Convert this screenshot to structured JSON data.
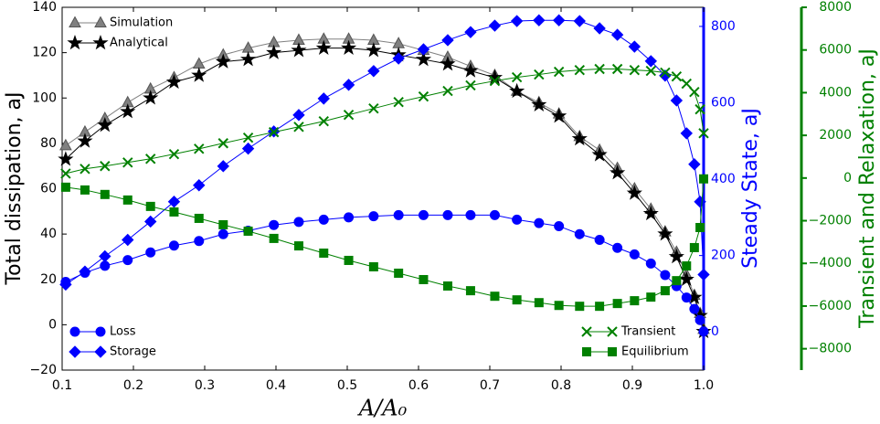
{
  "chart_data": {
    "type": "line",
    "xlabel": "A/A₀",
    "ylabel": "Total dissipation, aJ",
    "y2label": "Steady State, aJ",
    "y3label": "Transient and Relaxation, aJ",
    "y2color": "#0000ff",
    "y3color": "#008000",
    "x": [
      0.105,
      0.132,
      0.16,
      0.192,
      0.224,
      0.257,
      0.292,
      0.326,
      0.361,
      0.397,
      0.432,
      0.467,
      0.502,
      0.537,
      0.572,
      0.607,
      0.641,
      0.673,
      0.707,
      0.738,
      0.769,
      0.797,
      0.826,
      0.854,
      0.879,
      0.903,
      0.926,
      0.946,
      0.962,
      0.976,
      0.987,
      0.995,
      1.0
    ],
    "xlim": [
      0.1,
      1.0
    ],
    "xticks": [
      0.1,
      0.2,
      0.3,
      0.4,
      0.5,
      0.6,
      0.7,
      0.8,
      0.9,
      {
        "value": 1.0,
        "label": "1.0"
      }
    ],
    "ylim": [
      -20,
      140
    ],
    "yticks": [
      {
        "value": -20,
        "label": "−20"
      },
      0,
      20,
      40,
      60,
      80,
      100,
      120,
      140
    ],
    "y2lim": [
      -100,
      850
    ],
    "y2ticks": [
      0,
      200,
      400,
      600,
      800
    ],
    "y3lim": [
      -9000,
      8000
    ],
    "y3ticks": [
      {
        "value": -8000,
        "label": "−8000"
      },
      {
        "value": -6000,
        "label": "−6000"
      },
      {
        "value": -4000,
        "label": "−4000"
      },
      {
        "value": -2000,
        "label": "−2000"
      },
      0,
      2000,
      4000,
      6000,
      8000
    ],
    "series": [
      {
        "name": "Simulation",
        "color": "#808080",
        "marker": "^",
        "legend": "upper left",
        "values": [
          79,
          85,
          91,
          98,
          104,
          109,
          115,
          119,
          122,
          124.5,
          125.5,
          126,
          126,
          125.5,
          124,
          121,
          118,
          114,
          110,
          103,
          98,
          93,
          83,
          77,
          69,
          60,
          51,
          41,
          32,
          22,
          13,
          5,
          -2
        ]
      },
      {
        "name": "Analytical",
        "color": "#000000",
        "marker": "*",
        "legend": "upper left",
        "values": [
          73,
          81,
          88,
          94,
          100,
          107,
          110,
          116,
          117,
          120,
          121,
          122,
          122,
          121,
          119,
          117,
          115,
          112,
          109,
          103,
          97,
          92,
          82,
          75,
          67,
          58,
          49,
          40,
          30,
          20,
          12,
          4,
          -3
        ]
      },
      {
        "name": "Loss",
        "color": "#0000ff",
        "marker": "o",
        "axis": "y2",
        "legend": "lower left",
        "values": [
          131,
          155,
          173,
          188,
          208,
          226,
          238,
          256,
          265,
          280,
          288,
          294,
          300,
          303,
          306,
          306,
          306,
          306,
          306,
          294,
          285,
          277,
          256,
          241,
          220,
          203,
          179,
          149,
          120,
          90,
          60,
          31,
          1
        ]
      },
      {
        "name": "Storage",
        "color": "#0000ff",
        "marker": "D",
        "axis": "y2",
        "legend": "lower left",
        "values": [
          124,
          158,
          198,
          241,
          289,
          341,
          384,
          434,
          480,
          525,
          568,
          611,
          647,
          683,
          716,
          740,
          764,
          785,
          802,
          814,
          816,
          816,
          814,
          795,
          778,
          747,
          709,
          671,
          606,
          520,
          439,
          341,
          150
        ]
      },
      {
        "name": "Transient",
        "color": "#008000",
        "marker": "x",
        "axis": "y3",
        "legend": "lower right",
        "values": [
          210,
          430,
          560,
          730,
          900,
          1120,
          1370,
          1630,
          1890,
          2150,
          2400,
          2660,
          2960,
          3260,
          3560,
          3820,
          4080,
          4340,
          4550,
          4720,
          4850,
          4980,
          5060,
          5110,
          5110,
          5060,
          5020,
          4940,
          4760,
          4420,
          4030,
          3220,
          2100
        ]
      },
      {
        "name": "Equilibrium",
        "color": "#008000",
        "marker": "s",
        "axis": "y3",
        "legend": "lower right",
        "values": [
          -430,
          -560,
          -770,
          -1030,
          -1330,
          -1590,
          -1890,
          -2190,
          -2490,
          -2830,
          -3180,
          -3520,
          -3860,
          -4160,
          -4460,
          -4760,
          -5060,
          -5280,
          -5540,
          -5710,
          -5840,
          -5970,
          -6010,
          -6010,
          -5880,
          -5750,
          -5580,
          -5280,
          -4810,
          -4120,
          -3260,
          -2320,
          -40
        ]
      }
    ]
  }
}
